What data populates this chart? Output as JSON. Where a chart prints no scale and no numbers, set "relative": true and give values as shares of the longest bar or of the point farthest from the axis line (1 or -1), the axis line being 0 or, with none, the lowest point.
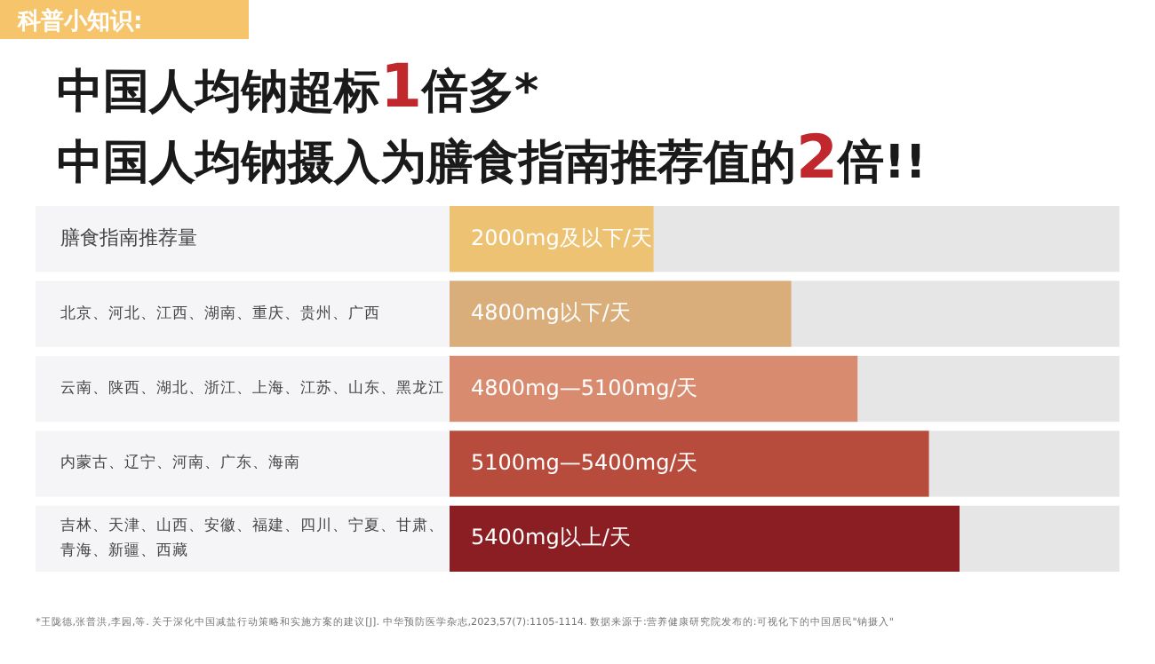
{
  "chart_data": {
    "type": "bar",
    "orientation": "horizontal",
    "relative": true,
    "title": "中国人均钠超标1倍多*",
    "subtitle": "中国人均钠摄入为膳食指南推荐值的2倍!!",
    "categories": [
      "膳食指南推荐量",
      "北京、河北、江西、湖南、重庆、贵州、广西",
      "云南、陕西、湖北、浙江、上海、江苏、山东、黑龙江",
      "内蒙古、辽宁、河南、广东、海南",
      "吉林、天津、山西、安徽、福建、四川、宁夏、甘肃、青海、新疆、西藏"
    ],
    "values": [
      0.4,
      0.67,
      0.8,
      0.94,
      1
    ],
    "colors": [
      "#eec273",
      "#d9ae7a",
      "#d98b6f",
      "#b84c3c",
      "#8b1e22"
    ],
    "annotations": [
      "科普小知识:",
      {
        "text": "2000mg及以下/天",
        "y": "膳食指南推荐量"
      },
      {
        "text": "4800mg以下/天",
        "y": "北京、河北、江西、湖南、重庆、贵州、广西"
      },
      {
        "text": "4800mg—5100mg/天",
        "y": "云南、陕西、湖北、浙江、上海、江苏、山东、黑龙江"
      },
      {
        "text": "5100mg—5400mg/天",
        "y": "内蒙古、辽宁、河南、广东、海南"
      },
      {
        "text": "5400mg以上/天",
        "y": "吉林、天津、山西、安徽、福建、四川、宁夏、甘肃、青海、新疆、西藏"
      },
      "*王陇德,张普洪,李园,等. 关于深化中国减盐行动策略和实施方案的建议[J]. 中华预防医学杂志,2023,57(7):1105-1114. 数据来源于:营养健康研究院发布的:可视化下的中国居民\"钠摄入\""
    ],
    "data_labels": false
  }
}
